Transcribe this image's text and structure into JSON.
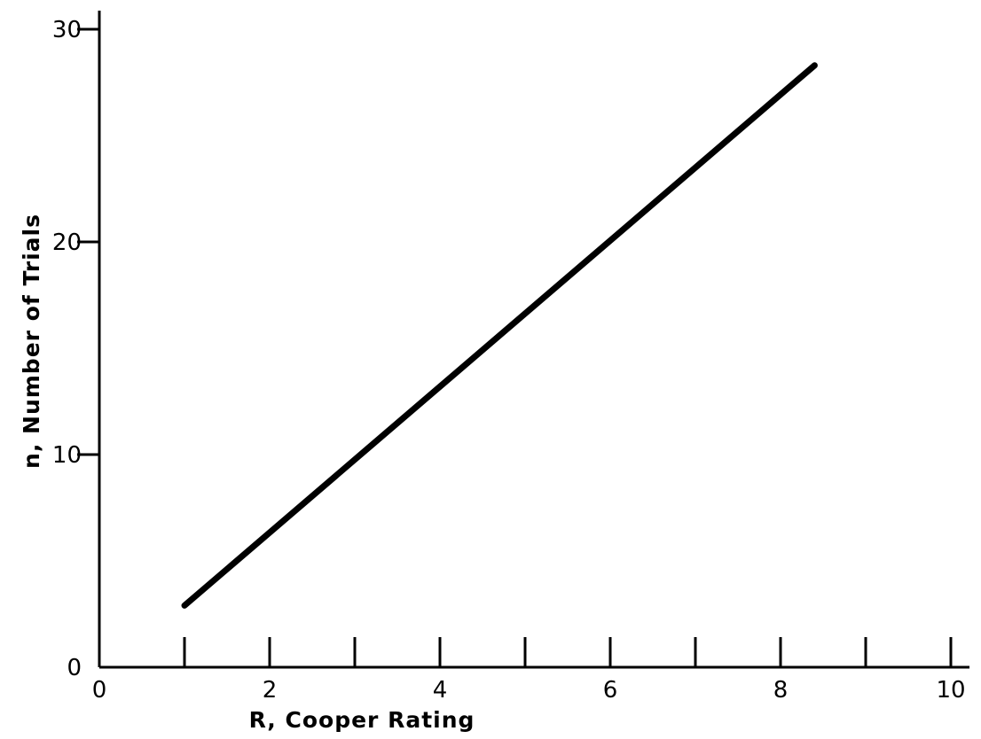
{
  "chart_data": {
    "type": "line",
    "title": "",
    "xlabel": "R, Cooper Rating",
    "ylabel": "n, Number of Trials",
    "xlim": [
      0,
      10
    ],
    "ylim": [
      0,
      30
    ],
    "x_ticks": [
      0,
      1,
      2,
      3,
      4,
      5,
      6,
      7,
      8,
      9,
      10
    ],
    "x_tick_labels": [
      "0",
      "2",
      "4",
      "6",
      "8",
      "10"
    ],
    "x_tick_label_values": [
      0,
      2,
      4,
      6,
      8,
      10
    ],
    "y_ticks": [
      0,
      10,
      20,
      30
    ],
    "y_tick_labels": [
      "0",
      "10",
      "20",
      "30"
    ],
    "grid": false,
    "series": [
      {
        "x": [
          1.0,
          8.4
        ],
        "y": [
          2.9,
          28.3
        ]
      }
    ]
  }
}
